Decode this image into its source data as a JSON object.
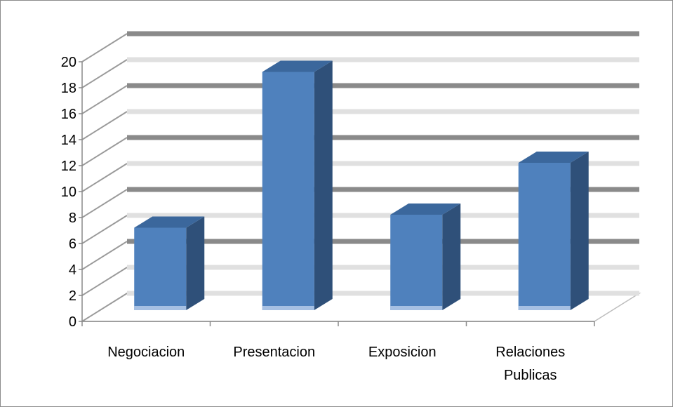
{
  "chart_data": {
    "type": "bar",
    "categories": [
      [
        "Negociacion"
      ],
      [
        "Presentacion"
      ],
      [
        "Exposicion"
      ],
      [
        "Relaciones",
        "Publicas"
      ]
    ],
    "values": [
      7,
      19,
      8,
      12
    ],
    "ylim": [
      0,
      20
    ],
    "yticks": [
      0,
      2,
      4,
      6,
      8,
      10,
      12,
      14,
      16,
      18,
      20
    ],
    "style": "3d-column",
    "grid": true,
    "legend": "none",
    "title": "",
    "xlabel": "",
    "ylabel": ""
  },
  "colors": {
    "bar_front": "#4f81bd",
    "bar_side": "#2f5079",
    "bar_top": "#3b679c",
    "bar_base": "#a6c0e3",
    "grid_light": "#e0e0e0",
    "grid_dark": "#8a8a8a"
  }
}
